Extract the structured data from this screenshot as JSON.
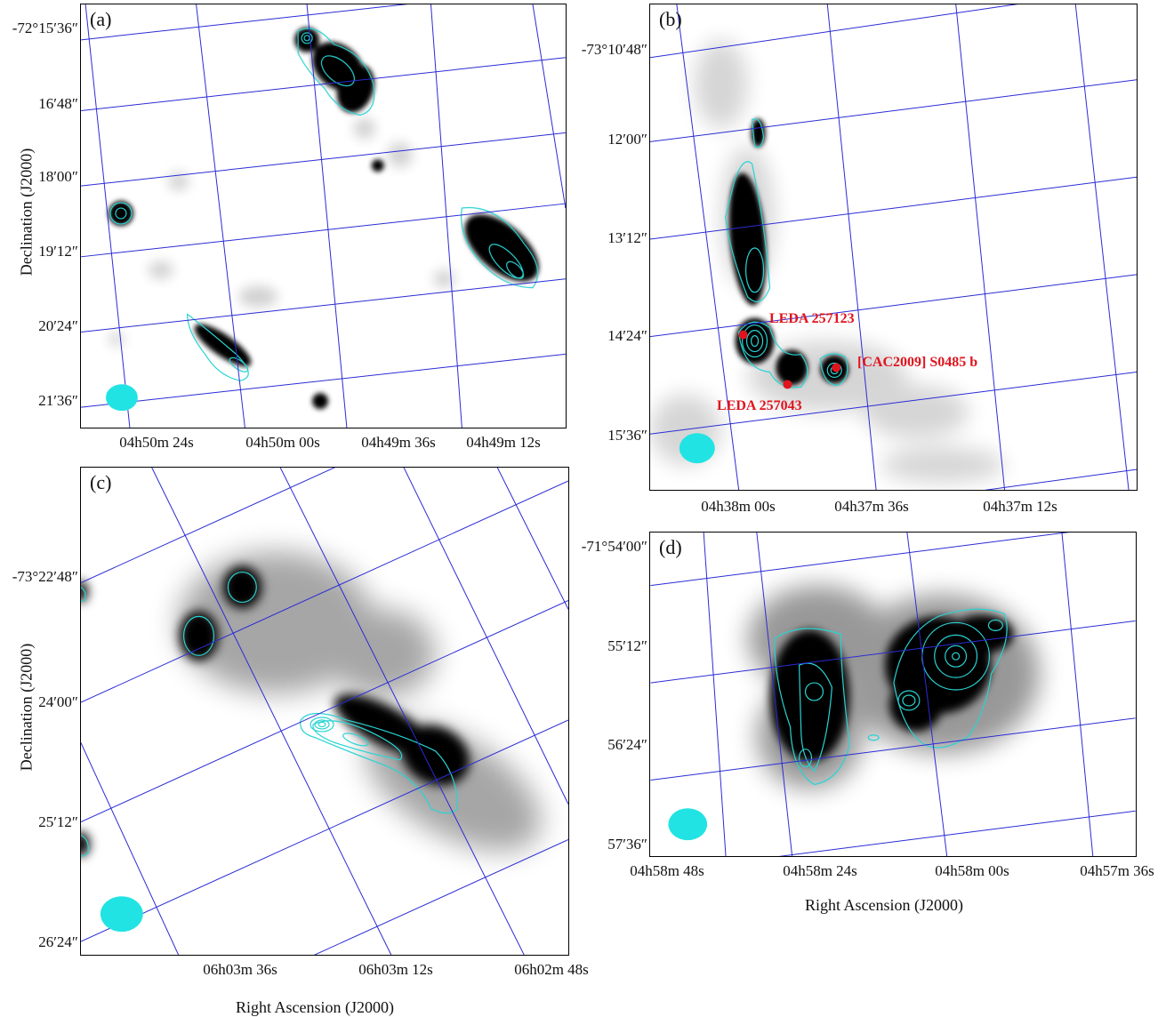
{
  "panels": {
    "a": {
      "label": "(a)",
      "dec_ticks": [
        "-72°15′36″",
        "16′48″",
        "18′00″",
        "19′12″",
        "20′24″",
        "21′36″"
      ],
      "ra_ticks": [
        "04h50m 24s",
        "04h50m 00s",
        "04h49m 36s",
        "04h49m 12s"
      ]
    },
    "b": {
      "label": "(b)",
      "dec_ticks": [
        "-73°10′48″",
        "12′00″",
        "13′12″",
        "14′24″",
        "15′36″"
      ],
      "ra_ticks": [
        "04h38m 00s",
        "04h37m 36s",
        "04h37m 12s"
      ],
      "sources": [
        "LEDA 257123",
        "[CAC2009] S0485 b",
        "LEDA 257043"
      ]
    },
    "c": {
      "label": "(c)",
      "dec_ticks": [
        "-73°22′48″",
        "24′00″",
        "25′12″",
        "26′24″"
      ],
      "ra_ticks": [
        "06h03m 36s",
        "06h03m 12s",
        "06h02m 48s"
      ]
    },
    "d": {
      "label": "(d)",
      "dec_ticks": [
        "-71°54′00″",
        "55′12″",
        "56′24″",
        "57′36″"
      ],
      "ra_ticks": [
        "04h58m 48s",
        "04h58m 24s",
        "04h58m 00s",
        "04h57m 36s"
      ]
    }
  },
  "axis_titles": {
    "declination": "Declination (J2000)",
    "right_ascension": "Right Ascension (J2000)"
  },
  "colors": {
    "grid": "#2b2bd6",
    "contour": "#29d3d3",
    "beam": "#22e3e3",
    "source_marker": "#e0141e"
  }
}
